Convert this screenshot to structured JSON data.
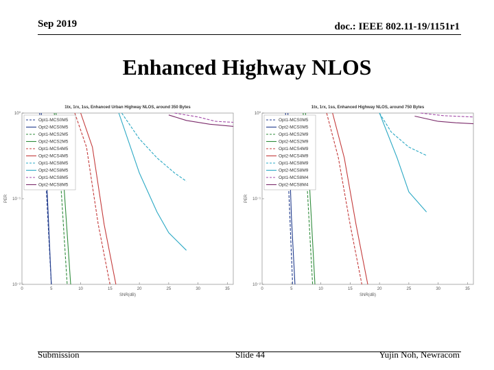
{
  "header": {
    "date": "Sep 2019",
    "doc": "doc.: IEEE 802.11-19/1151r1"
  },
  "title": "Enhanced Highway NLOS",
  "footer": {
    "left": "Submission",
    "center": "Slide 44",
    "right": "Yujin Noh, Newracom"
  },
  "chart_data": [
    {
      "type": "line",
      "title": "1tx, 1rx, 1ss, Enhanced Urban Highway NLOS, around 350 Bytes",
      "xlabel": "SNR(dB)",
      "ylabel": "PER",
      "xlim": [
        0,
        36
      ],
      "ylim": [
        0.01,
        1
      ],
      "yscale": "log",
      "xticks": [
        0,
        5,
        10,
        15,
        20,
        25,
        30,
        35
      ],
      "yticks": [
        {
          "v": 1,
          "l": "10⁰"
        },
        {
          "v": 0.1,
          "l": "10⁻¹"
        },
        {
          "v": 0.01,
          "l": "10⁻²"
        }
      ],
      "legend_position": "top-left",
      "series": [
        {
          "name": "Opt1-MCS0M5",
          "color": "#1f3a8c",
          "dash": true,
          "x": [
            3,
            4,
            5
          ],
          "y": [
            1,
            0.2,
            0.01
          ]
        },
        {
          "name": "Opt2-MCS0M5",
          "color": "#1f3a8c",
          "dash": false,
          "x": [
            3.3,
            4.3,
            5
          ],
          "y": [
            1,
            0.12,
            0.01
          ]
        },
        {
          "name": "Opt1-MCS2M5",
          "color": "#2e8b3a",
          "dash": true,
          "x": [
            5.5,
            6.5,
            7.7
          ],
          "y": [
            1,
            0.2,
            0.01
          ]
        },
        {
          "name": "Opt2-MCS2M5",
          "color": "#2e8b3a",
          "dash": false,
          "x": [
            5.8,
            7,
            8.3
          ],
          "y": [
            1,
            0.2,
            0.01
          ]
        },
        {
          "name": "Opt1-MCS4M5",
          "color": "#c43b3b",
          "dash": true,
          "x": [
            9,
            11,
            13,
            15
          ],
          "y": [
            1,
            0.4,
            0.05,
            0.01
          ]
        },
        {
          "name": "Opt2-MCS4M5",
          "color": "#c43b3b",
          "dash": false,
          "x": [
            10,
            12,
            14,
            16
          ],
          "y": [
            1,
            0.4,
            0.05,
            0.01
          ]
        },
        {
          "name": "Opt1-MCS8M5",
          "color": "#2aa8c4",
          "dash": true,
          "x": [
            17,
            20,
            23,
            26,
            28
          ],
          "y": [
            1,
            0.5,
            0.3,
            0.2,
            0.16
          ]
        },
        {
          "name": "Opt2-MCS8M5",
          "color": "#2aa8c4",
          "dash": false,
          "x": [
            16.5,
            20,
            23,
            25,
            28
          ],
          "y": [
            1,
            0.2,
            0.07,
            0.04,
            0.025
          ]
        },
        {
          "name": "Opt1-MCS8M5",
          "color": "#a24aa8",
          "dash": true,
          "x": [
            26,
            30,
            33,
            36
          ],
          "y": [
            1,
            0.9,
            0.8,
            0.78
          ]
        },
        {
          "name": "Opt2-MCS8M5",
          "color": "#7a2a6a",
          "dash": false,
          "x": [
            25,
            28,
            32,
            36
          ],
          "y": [
            0.95,
            0.82,
            0.74,
            0.7
          ]
        }
      ]
    },
    {
      "type": "line",
      "title": "1tx, 1rx, 1ss, Enhanced Highway NLOS, around 750 Bytes",
      "xlabel": "SNR(dB)",
      "ylabel": "PER",
      "xlim": [
        0,
        36
      ],
      "ylim": [
        0.01,
        1
      ],
      "yscale": "log",
      "xticks": [
        0,
        5,
        10,
        15,
        20,
        25,
        30,
        35
      ],
      "yticks": [
        {
          "v": 1,
          "l": "10⁰"
        },
        {
          "v": 0.1,
          "l": "10⁻¹"
        },
        {
          "v": 0.01,
          "l": "10⁻²"
        }
      ],
      "legend_position": "top-left",
      "series": [
        {
          "name": "Opt1-MCS0M5",
          "color": "#1f3a8c",
          "dash": true,
          "x": [
            4,
            4.6,
            5.2
          ],
          "y": [
            1,
            0.1,
            0.01
          ]
        },
        {
          "name": "Opt2-MCS0M5",
          "color": "#1f3a8c",
          "dash": false,
          "x": [
            4.4,
            5,
            5.6
          ],
          "y": [
            1,
            0.06,
            0.01
          ]
        },
        {
          "name": "Opt1-MCS2M9",
          "color": "#2e8b3a",
          "dash": true,
          "x": [
            7,
            7.8,
            8.6
          ],
          "y": [
            1,
            0.1,
            0.01
          ]
        },
        {
          "name": "Opt2-MCS2M9",
          "color": "#2e8b3a",
          "dash": false,
          "x": [
            7.4,
            8.2,
            9
          ],
          "y": [
            1,
            0.1,
            0.01
          ]
        },
        {
          "name": "Opt1-MCS4M9",
          "color": "#c43b3b",
          "dash": true,
          "x": [
            11,
            13,
            15,
            17
          ],
          "y": [
            1,
            0.3,
            0.05,
            0.01
          ]
        },
        {
          "name": "Opt2-MCS4M9",
          "color": "#c43b3b",
          "dash": false,
          "x": [
            12,
            14,
            16,
            18
          ],
          "y": [
            1,
            0.3,
            0.05,
            0.01
          ]
        },
        {
          "name": "Opt1-MCS8M9",
          "color": "#2aa8c4",
          "dash": true,
          "x": [
            20,
            22,
            25,
            28
          ],
          "y": [
            1,
            0.6,
            0.4,
            0.32
          ]
        },
        {
          "name": "Opt2-MCS8M9",
          "color": "#2aa8c4",
          "dash": false,
          "x": [
            20,
            23,
            25,
            28
          ],
          "y": [
            1,
            0.3,
            0.12,
            0.07
          ]
        },
        {
          "name": "Opt1-MCS8M4",
          "color": "#a24aa8",
          "dash": true,
          "x": [
            27,
            31,
            36
          ],
          "y": [
            1,
            0.93,
            0.9
          ]
        },
        {
          "name": "Opt2-MCS8M4",
          "color": "#7a2a6a",
          "dash": false,
          "x": [
            26,
            30,
            33,
            36
          ],
          "y": [
            0.92,
            0.8,
            0.77,
            0.75
          ]
        }
      ]
    }
  ]
}
